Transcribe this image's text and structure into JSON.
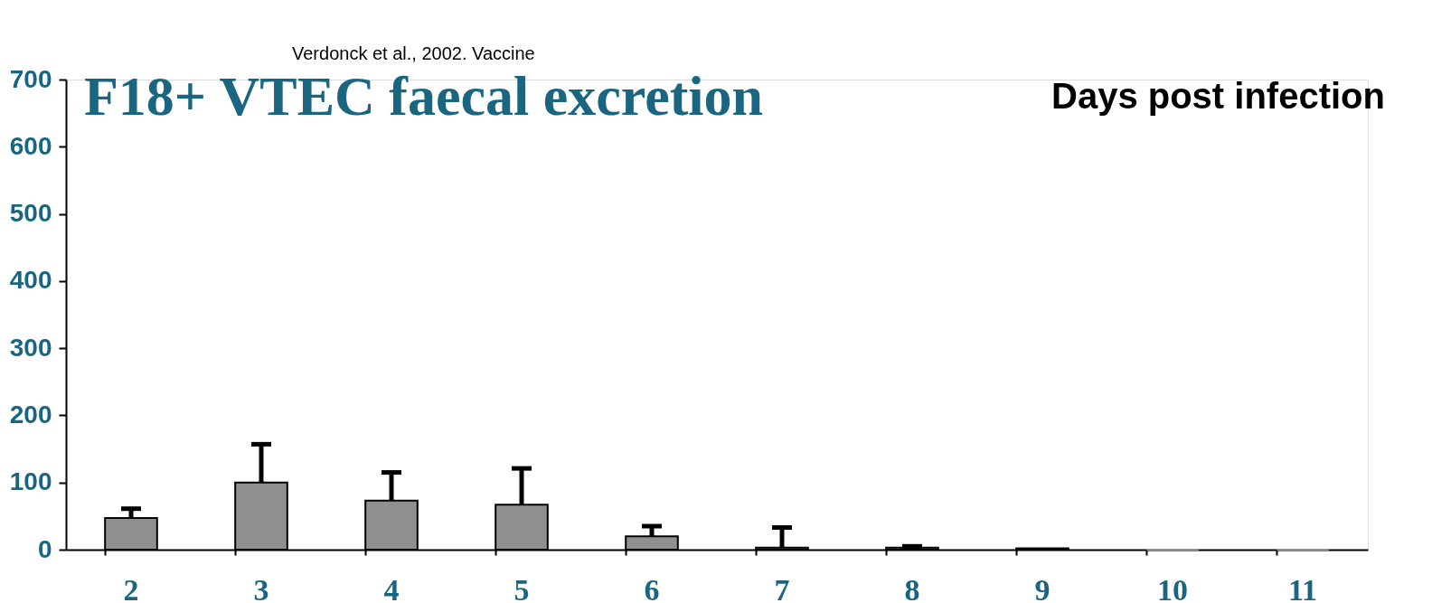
{
  "chart_data": {
    "type": "bar",
    "title": "F18+ VTEC faecal excretion",
    "xlabel": "Days post infection",
    "annotations": [
      "Verdonck et al., 2002. Vaccine"
    ],
    "categories": [
      "2",
      "3",
      "4",
      "5",
      "6",
      "7",
      "8",
      "9",
      "10",
      "11"
    ],
    "values": [
      47,
      100,
      73,
      67,
      20,
      3,
      3,
      2,
      0,
      0
    ],
    "errors": [
      [
        47,
        61
      ],
      [
        100,
        157
      ],
      [
        73,
        115
      ],
      [
        67,
        121
      ],
      [
        20,
        35
      ],
      [
        3,
        33
      ],
      [
        3,
        5
      ],
      null,
      null,
      null
    ],
    "color": "#909090",
    "ylim": [
      0,
      700
    ],
    "yticks": [
      0,
      100,
      200,
      300,
      400,
      500,
      600,
      700
    ],
    "grid": false
  }
}
